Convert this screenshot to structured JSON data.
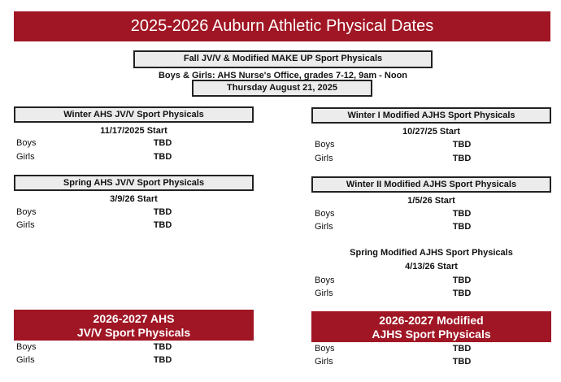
{
  "title": "2025-2026 Auburn Athletic Physical Dates",
  "fall": {
    "heading": "Fall JV/V & Modified MAKE UP Sport Physicals",
    "location": "Boys & Girls: AHS Nurse's Office, grades 7-12, 9am - Noon",
    "date": "Thursday August 21, 2025"
  },
  "winter_ahs": {
    "heading": "Winter AHS JV/V Sport Physicals",
    "start": "11/17/2025 Start",
    "rows": [
      {
        "label": "Boys",
        "value": "TBD"
      },
      {
        "label": "Girls",
        "value": "TBD"
      }
    ]
  },
  "winter1_mod": {
    "heading": "Winter I Modified AJHS Sport Physicals",
    "start": "10/27/25 Start",
    "rows": [
      {
        "label": "Boys",
        "value": "TBD"
      },
      {
        "label": "Girls",
        "value": "TBD"
      }
    ]
  },
  "spring_ahs": {
    "heading": "Spring AHS JV/V Sport Physicals",
    "start": "3/9/26 Start",
    "rows": [
      {
        "label": "Boys",
        "value": "TBD"
      },
      {
        "label": "Girls",
        "value": "TBD"
      }
    ]
  },
  "winter2_mod": {
    "heading": "Winter II Modified AJHS Sport Physicals",
    "start": "1/5/26 Start",
    "rows": [
      {
        "label": "Boys",
        "value": "TBD"
      },
      {
        "label": "Girls",
        "value": "TBD"
      }
    ]
  },
  "spring_mod": {
    "heading": "Spring Modified AJHS Sport Physicals",
    "start": "4/13/26 Start",
    "rows": [
      {
        "label": "Boys",
        "value": "TBD"
      },
      {
        "label": "Girls",
        "value": "TBD"
      }
    ]
  },
  "next_ahs": {
    "heading_line1": "2026-2027 AHS",
    "heading_line2": "JV/V Sport Physicals",
    "rows": [
      {
        "label": "Boys",
        "value": "TBD"
      },
      {
        "label": "Girls",
        "value": "TBD"
      }
    ]
  },
  "next_mod": {
    "heading_line1": "2026-2027 Modified",
    "heading_line2": "AJHS Sport Physicals",
    "rows": [
      {
        "label": "Boys",
        "value": "TBD"
      },
      {
        "label": "Girls",
        "value": "TBD"
      }
    ]
  },
  "colors": {
    "banner": "#a01624",
    "box_fill": "#ececec"
  }
}
